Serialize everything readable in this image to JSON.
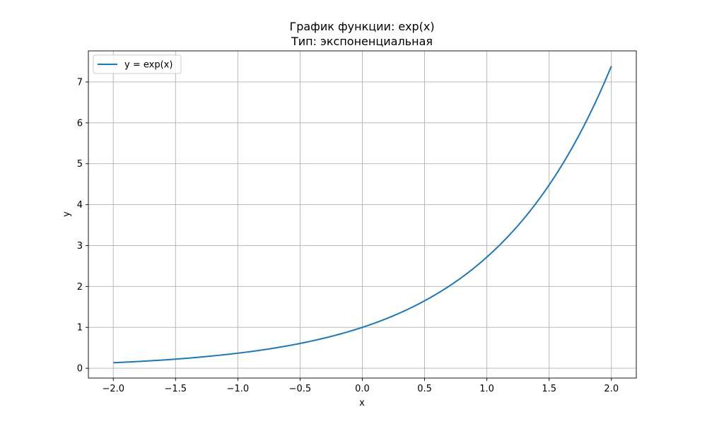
{
  "chart_data": {
    "type": "line",
    "title": "График функции: exp(x)",
    "subtitle": "Тип: экспоненциальная",
    "xlabel": "x",
    "ylabel": "y",
    "xlim": [
      -2.2,
      2.2
    ],
    "ylim": [
      -0.24,
      7.76
    ],
    "xticks": [
      -2.0,
      -1.5,
      -1.0,
      -0.5,
      0.0,
      0.5,
      1.0,
      1.5,
      2.0
    ],
    "xtick_labels": [
      "−2.0",
      "−1.5",
      "−1.0",
      "−0.5",
      "0.0",
      "0.5",
      "1.0",
      "1.5",
      "2.0"
    ],
    "yticks": [
      0,
      1,
      2,
      3,
      4,
      5,
      6,
      7
    ],
    "ytick_labels": [
      "0",
      "1",
      "2",
      "3",
      "4",
      "5",
      "6",
      "7"
    ],
    "grid": true,
    "legend_position": "top-left",
    "series": [
      {
        "name": "y = exp(x)",
        "color": "#1f77b4",
        "x": [
          -2.0,
          -1.75,
          -1.5,
          -1.25,
          -1.0,
          -0.75,
          -0.5,
          -0.25,
          0.0,
          0.25,
          0.5,
          0.75,
          1.0,
          1.25,
          1.5,
          1.75,
          2.0
        ],
        "y": [
          0.135,
          0.174,
          0.223,
          0.287,
          0.368,
          0.472,
          0.607,
          0.779,
          1.0,
          1.284,
          1.649,
          2.117,
          2.718,
          3.49,
          4.482,
          5.755,
          7.389
        ]
      }
    ]
  }
}
